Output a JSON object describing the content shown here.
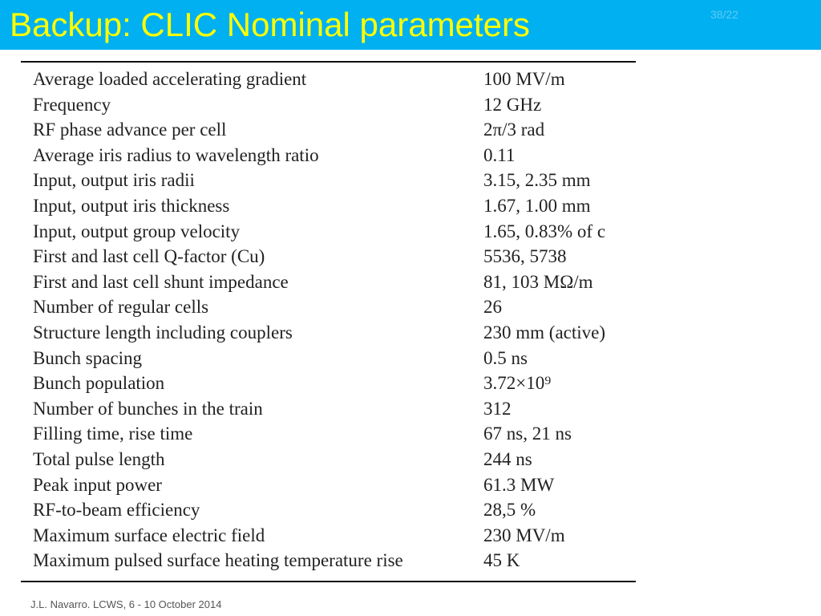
{
  "slide": {
    "title": "Backup: CLIC Nominal parameters",
    "page_number": "38/22",
    "footer": "J.L. Navarro. LCWS, 6 - 10 October 2014"
  },
  "table": {
    "rows": [
      {
        "parameter": "Average loaded accelerating gradient",
        "value": "100 MV/m"
      },
      {
        "parameter": "Frequency",
        "value": "12 GHz"
      },
      {
        "parameter": "RF phase advance per cell",
        "value": "2π/3 rad"
      },
      {
        "parameter": "Average iris radius to wavelength ratio",
        "value": "0.11"
      },
      {
        "parameter": "Input, output iris radii",
        "value": "3.15, 2.35 mm"
      },
      {
        "parameter": "Input, output iris thickness",
        "value": "1.67, 1.00 mm"
      },
      {
        "parameter": "Input, output group velocity",
        "value": "1.65, 0.83% of c"
      },
      {
        "parameter": "First and last cell Q-factor (Cu)",
        "value": "5536, 5738"
      },
      {
        "parameter": "First and last cell shunt impedance",
        "value": "81, 103 MΩ/m"
      },
      {
        "parameter": "Number of regular cells",
        "value": "26"
      },
      {
        "parameter": "Structure length including couplers",
        "value": "230 mm (active)"
      },
      {
        "parameter": "Bunch spacing",
        "value": "0.5 ns"
      },
      {
        "parameter": "Bunch population",
        "value": "3.72×10⁹"
      },
      {
        "parameter": "Number of bunches in the train",
        "value": "312"
      },
      {
        "parameter": "Filling time, rise time",
        "value": "67 ns, 21 ns"
      },
      {
        "parameter": "Total pulse length",
        "value": "244 ns"
      },
      {
        "parameter": "Peak input power",
        "value": "61.3 MW"
      },
      {
        "parameter": "RF-to-beam efficiency",
        "value": "28,5 %"
      },
      {
        "parameter": "Maximum surface electric field",
        "value": "230 MV/m"
      },
      {
        "parameter": "Maximum pulsed surface heating temperature rise",
        "value": "45 K"
      }
    ]
  },
  "colors": {
    "title_bar": "#00b0f0",
    "title_text": "#ffff00",
    "table_text": "#222222"
  }
}
